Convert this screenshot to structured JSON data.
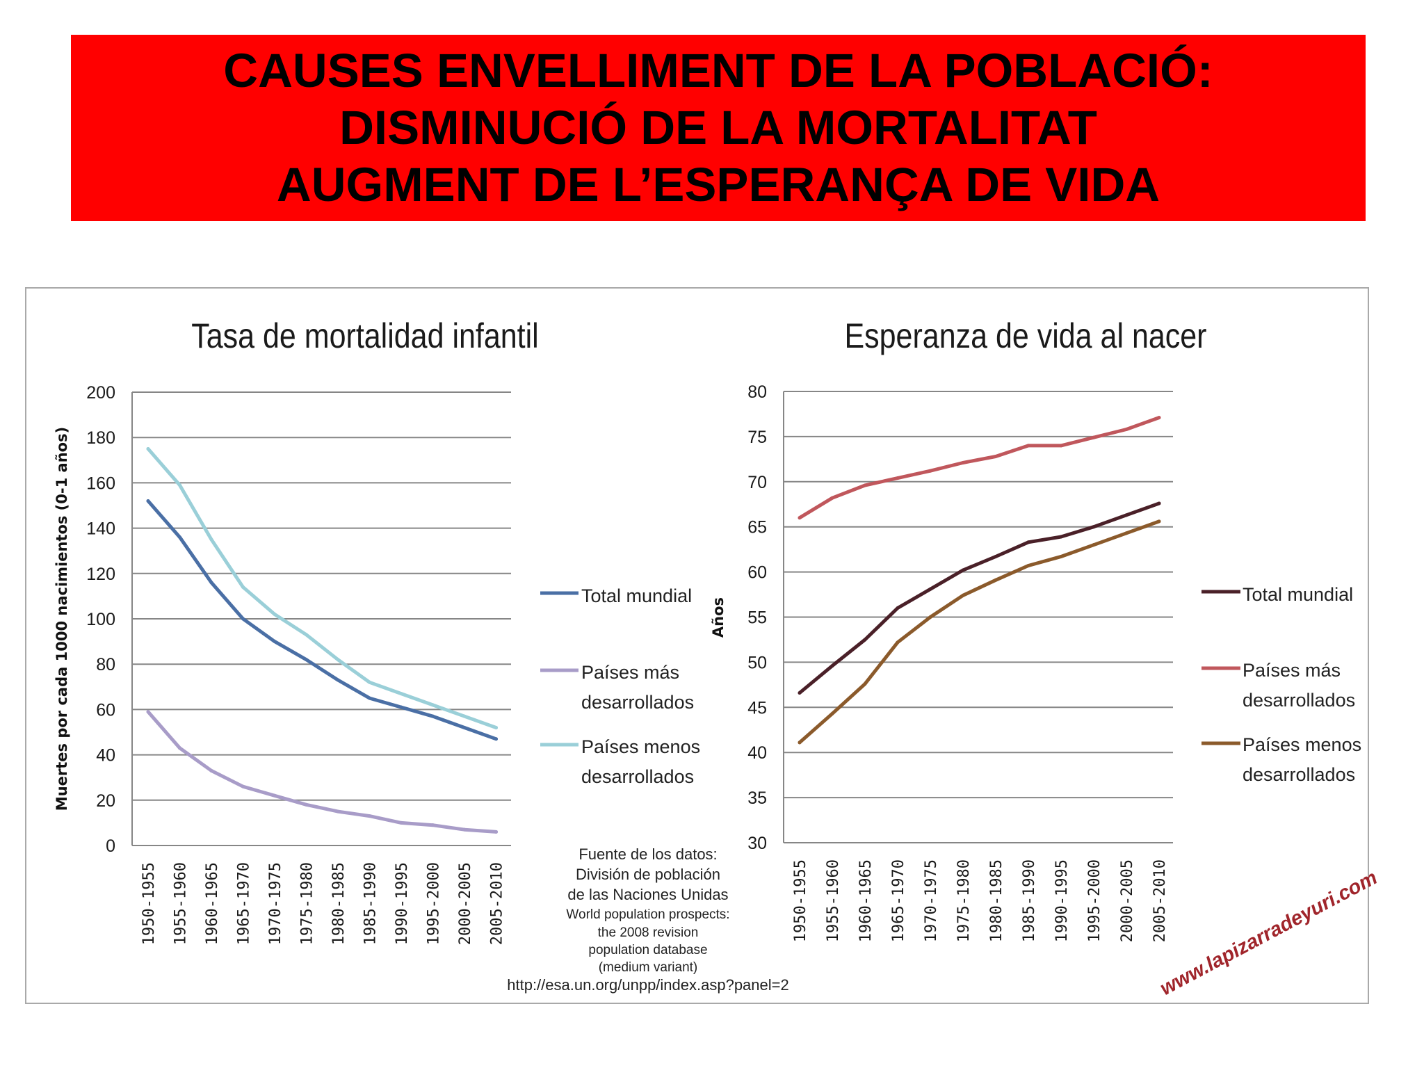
{
  "banner": {
    "line1": "CAUSES ENVELLIMENT DE LA POBLACIÓ:",
    "line2": "DISMINUCIÓ DE LA MORTALITAT",
    "line3": "AUGMENT DE L’ESPERANÇA DE VIDA",
    "background": "#ff0000"
  },
  "source": {
    "lines": [
      "Fuente de los datos:",
      "División de población",
      "de las Naciones Unidas",
      "World population prospects:",
      "the 2008 revision",
      "population database",
      "(medium variant)",
      "http://esa.un.org/unpp/index.asp?panel=2"
    ]
  },
  "watermark": {
    "text": "www.lapizarradeyuri.com",
    "color": "#a0252b"
  },
  "chart_data": [
    {
      "type": "line",
      "title": "Tasa de mortalidad infantil",
      "xlabel": "",
      "ylabel": "Muertes por cada  1000 nacimientos  (0-1 años)",
      "ylim": [
        0,
        200
      ],
      "yticks": [
        0,
        20,
        40,
        60,
        80,
        100,
        120,
        140,
        160,
        180,
        200
      ],
      "grid": true,
      "legend": "right",
      "categories": [
        "1950-1955",
        "1955-1960",
        "1960-1965",
        "1965-1970",
        "1970-1975",
        "1975-1980",
        "1980-1985",
        "1985-1990",
        "1990-1995",
        "1995-2000",
        "2000-2005",
        "2005-2010"
      ],
      "series": [
        {
          "name": "Total mundial",
          "color": "#4a6fa5",
          "values": [
            152,
            136,
            116,
            100,
            90,
            82,
            73,
            65,
            61,
            57,
            52,
            47
          ]
        },
        {
          "name": "Países más desarrollados",
          "color": "#a89cc8",
          "values": [
            59,
            43,
            33,
            26,
            22,
            18,
            15,
            13,
            10,
            9,
            7,
            6
          ]
        },
        {
          "name": "Países menos desarrollados",
          "color": "#9acfd8",
          "values": [
            175,
            159,
            135,
            114,
            102,
            93,
            82,
            72,
            67,
            62,
            57,
            52
          ]
        }
      ]
    },
    {
      "type": "line",
      "title": "Esperanza de vida al nacer",
      "xlabel": "",
      "ylabel": "Años",
      "ylim": [
        30,
        80
      ],
      "yticks": [
        30,
        35,
        40,
        45,
        50,
        55,
        60,
        65,
        70,
        75,
        80
      ],
      "grid": true,
      "legend": "right",
      "categories": [
        "1950-1955",
        "1955-1960",
        "1960-1965",
        "1965-1970",
        "1970-1975",
        "1975-1980",
        "1980-1985",
        "1985-1990",
        "1990-1995",
        "1995-2000",
        "2000-2005",
        "2005-2010"
      ],
      "series": [
        {
          "name": "Total mundial",
          "color": "#4a2028",
          "values": [
            46.6,
            49.6,
            52.5,
            56.0,
            58.1,
            60.2,
            61.7,
            63.3,
            63.9,
            65.0,
            66.3,
            67.6
          ]
        },
        {
          "name": "Países más desarrollados",
          "color": "#c0575c",
          "values": [
            66.0,
            68.2,
            69.6,
            70.4,
            71.2,
            72.1,
            72.8,
            74.0,
            74.0,
            74.9,
            75.8,
            77.1
          ]
        },
        {
          "name": "Países menos desarrollados",
          "color": "#8b5a2b",
          "values": [
            41.1,
            44.3,
            47.6,
            52.2,
            55.0,
            57.4,
            59.1,
            60.7,
            61.7,
            63.0,
            64.3,
            65.6
          ]
        }
      ]
    }
  ]
}
